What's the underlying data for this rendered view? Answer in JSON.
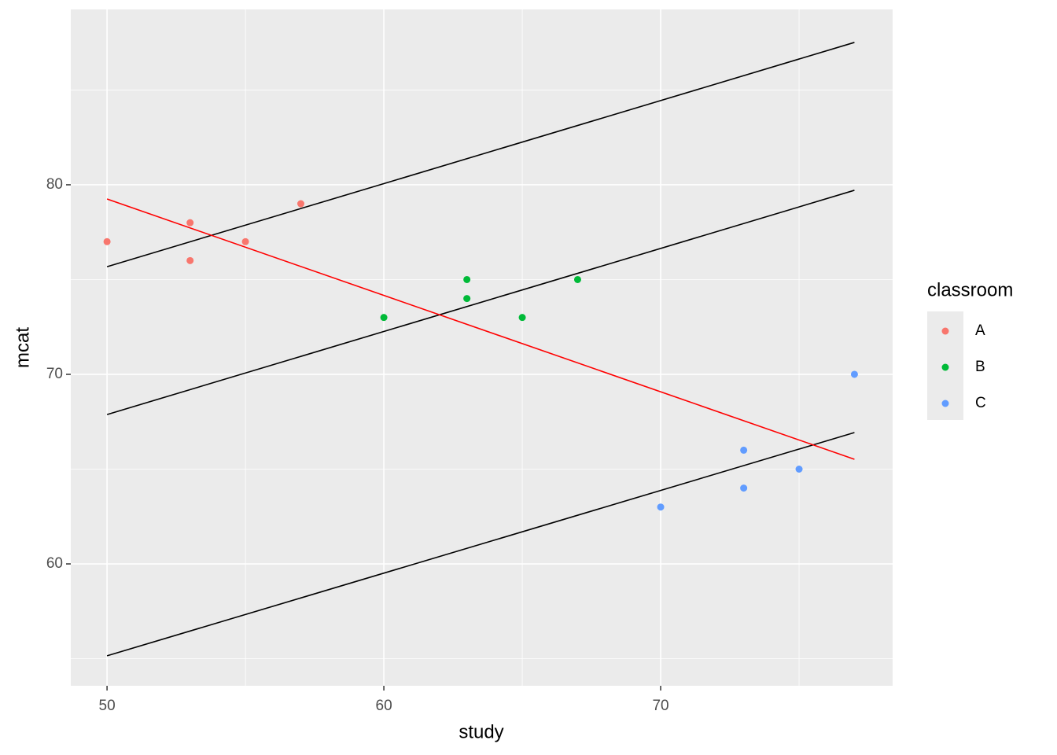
{
  "chart_data": {
    "type": "scatter",
    "x_label": "study",
    "y_label": "mcat",
    "legend_title": "classroom",
    "xlim": [
      48.69,
      78.38
    ],
    "ylim": [
      53.57,
      89.25
    ],
    "xticks": [
      50,
      60,
      70
    ],
    "yticks": [
      60,
      70,
      80
    ],
    "xminor": [
      55,
      65,
      75
    ],
    "yminor": [
      55,
      65,
      75,
      85
    ],
    "grid": true,
    "legend": "right",
    "series": [
      {
        "name": "A",
        "color": "#F8766D",
        "x": [
          50,
          53,
          53,
          55,
          57
        ],
        "values": [
          77,
          78,
          76,
          77,
          79
        ]
      },
      {
        "name": "B",
        "color": "#00BA38",
        "x": [
          60,
          63,
          63,
          65,
          67
        ],
        "values": [
          73,
          75,
          74,
          73,
          75
        ]
      },
      {
        "name": "C",
        "color": "#619CFF",
        "x": [
          70,
          73,
          73,
          75,
          77
        ],
        "values": [
          63,
          66,
          64,
          65,
          70
        ]
      }
    ],
    "lines": [
      {
        "color": "#000000",
        "x": [
          50,
          77
        ],
        "values": [
          75.68,
          87.51
        ]
      },
      {
        "color": "#000000",
        "x": [
          50,
          77
        ],
        "values": [
          67.88,
          79.71
        ]
      },
      {
        "color": "#000000",
        "x": [
          50,
          77
        ],
        "values": [
          55.15,
          66.93
        ]
      },
      {
        "color": "#ff0000",
        "x": [
          50,
          77
        ],
        "values": [
          79.25,
          65.52
        ]
      }
    ]
  }
}
